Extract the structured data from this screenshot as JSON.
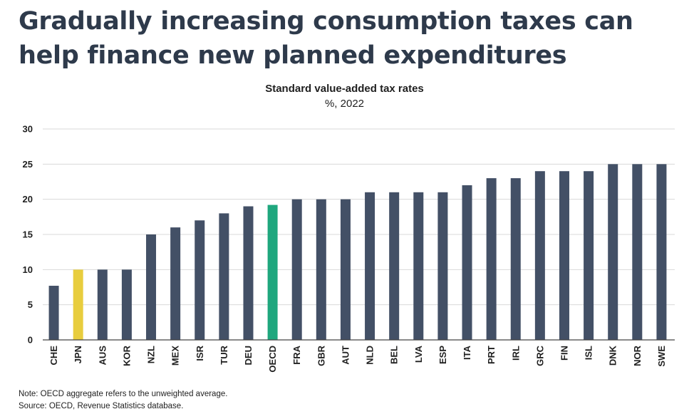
{
  "headline": "Gradually increasing consumption taxes can help finance new planned expenditures",
  "colors": {
    "bar_default": "#435066",
    "bar_japan": "#e8cd3e",
    "bar_oecd": "#1fa77e",
    "gridline": "#d9d9d9",
    "axis": "#444444"
  },
  "chart_data": {
    "type": "bar",
    "title": "Standard value-added tax rates",
    "subtitle": "%, 2022",
    "xlabel": "",
    "ylabel": "",
    "ylim": [
      0,
      30
    ],
    "yticks": [
      0,
      5,
      10,
      15,
      20,
      25,
      30
    ],
    "grid": true,
    "categories": [
      "CHE",
      "JPN",
      "AUS",
      "KOR",
      "NZL",
      "MEX",
      "ISR",
      "TUR",
      "DEU",
      "OECD",
      "FRA",
      "GBR",
      "AUT",
      "NLD",
      "BEL",
      "LVA",
      "ESP",
      "ITA",
      "PRT",
      "IRL",
      "GRC",
      "FIN",
      "ISL",
      "DNK",
      "NOR",
      "SWE"
    ],
    "values": [
      7.7,
      10,
      10,
      10,
      15,
      16,
      17,
      18,
      19,
      19.2,
      20,
      20,
      20,
      21,
      21,
      21,
      21,
      22,
      23,
      23,
      24,
      24,
      24,
      25,
      25,
      25
    ],
    "highlight": {
      "JPN": "bar_japan",
      "OECD": "bar_oecd"
    }
  },
  "notes": {
    "note": "Note: OECD aggregate refers to the unweighted average.",
    "source": "Source: OECD, Revenue Statistics database."
  }
}
